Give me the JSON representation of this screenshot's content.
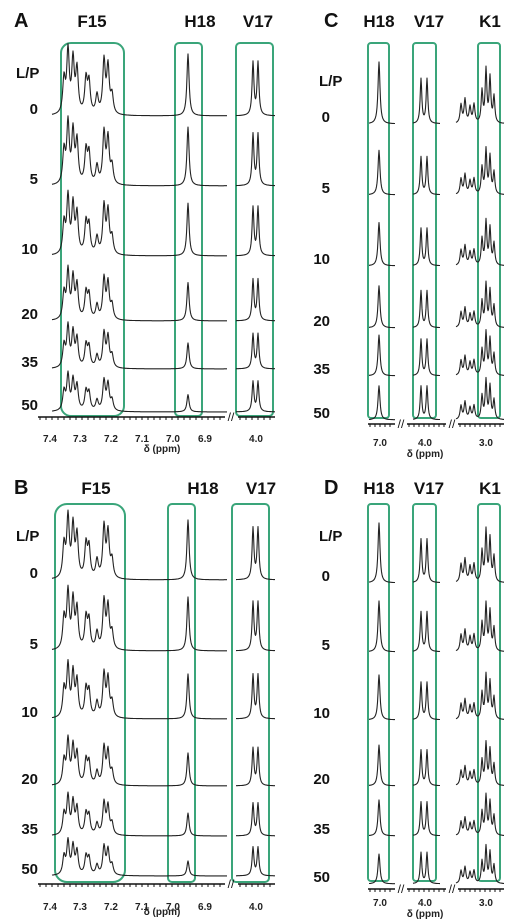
{
  "colors": {
    "highlight": "#3aa57a",
    "trace": "#222222"
  },
  "row_label_header": "L/P",
  "row_labels": [
    "0",
    "5",
    "10",
    "20",
    "35",
    "50"
  ],
  "chart_data": [
    {
      "type": "line",
      "panel": "A",
      "xlabel": "δ (ppm)",
      "x_ticks": [
        "7.4",
        "7.3",
        "7.2",
        "7.1",
        "7.0",
        "6.9",
        "4.0"
      ],
      "region_labels": [
        "F15",
        "H18",
        "V17"
      ],
      "series_names": [
        "0",
        "5",
        "10",
        "20",
        "35",
        "50"
      ],
      "relative_peak_height_H18": [
        1.0,
        0.95,
        0.85,
        0.62,
        0.42,
        0.28
      ]
    },
    {
      "type": "line",
      "panel": "B",
      "xlabel": "δ (ppm)",
      "x_ticks": [
        "7.4",
        "7.3",
        "7.2",
        "7.1",
        "7.0",
        "6.9",
        "4.0"
      ],
      "region_labels": [
        "F15",
        "H18",
        "V17"
      ],
      "series_names": [
        "0",
        "5",
        "10",
        "20",
        "35",
        "50"
      ],
      "relative_peak_height_H18": [
        1.0,
        0.9,
        0.75,
        0.55,
        0.38,
        0.25
      ]
    },
    {
      "type": "line",
      "panel": "C",
      "xlabel": "δ (ppm)",
      "x_ticks": [
        "7.0",
        "4.0",
        "3.0"
      ],
      "region_labels": [
        "H18",
        "V17",
        "K1"
      ],
      "series_names": [
        "0",
        "5",
        "10",
        "20",
        "35",
        "50"
      ],
      "relative_peak_height_H18": [
        1.0,
        0.72,
        0.7,
        0.68,
        0.66,
        0.55
      ]
    },
    {
      "type": "line",
      "panel": "D",
      "xlabel": "δ (ppm)",
      "x_ticks": [
        "7.0",
        "4.0",
        "3.0"
      ],
      "region_labels": [
        "H18",
        "V17",
        "K1"
      ],
      "series_names": [
        "0",
        "5",
        "10",
        "20",
        "35",
        "50"
      ],
      "relative_peak_height_H18": [
        1.0,
        0.85,
        0.75,
        0.68,
        0.6,
        0.5
      ]
    }
  ]
}
